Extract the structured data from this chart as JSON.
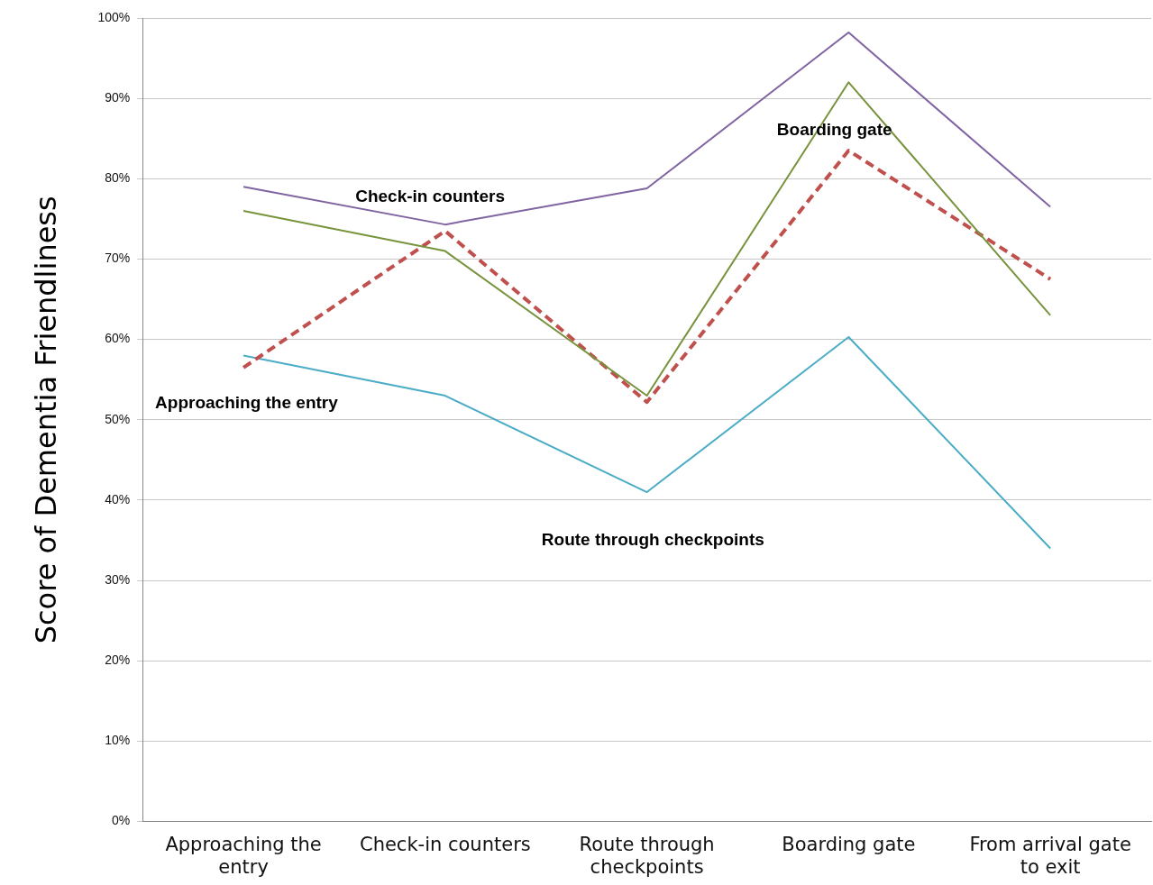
{
  "chart_data": {
    "type": "line",
    "ylabel": "Score of Dementia Friendliness",
    "categories": [
      "Approaching the entry",
      "Check-in counters",
      "Route through checkpoints",
      "Boarding gate",
      "From arrival gate to exit"
    ],
    "series": [
      {
        "color": "#8064a2",
        "values": [
          79,
          74.3,
          78.8,
          98.2,
          76.5
        ]
      },
      {
        "color": "#77933c",
        "values": [
          76,
          71,
          53,
          92,
          63
        ]
      },
      {
        "color": "#c0504d",
        "values": [
          56.5,
          73.5,
          52.2,
          83.5,
          67.5
        ],
        "line_style": "dashed"
      },
      {
        "color": "#4bacc6",
        "values": [
          58,
          53,
          41,
          60.3,
          34
        ]
      }
    ],
    "ylim": [
      0,
      100
    ],
    "yticks": [
      {
        "value": 0,
        "label": "0%"
      },
      {
        "value": 10,
        "label": "10%"
      },
      {
        "value": 20,
        "label": "20%"
      },
      {
        "value": 30,
        "label": "30%"
      },
      {
        "value": 40,
        "label": "40%"
      },
      {
        "value": 50,
        "label": "50%"
      },
      {
        "value": 60,
        "label": "60%"
      },
      {
        "value": 70,
        "label": "70%"
      },
      {
        "value": 80,
        "label": "80%"
      },
      {
        "value": 90,
        "label": "90%"
      },
      {
        "value": 100,
        "label": "100%"
      }
    ],
    "grid": "y",
    "legend": false,
    "marker": "none",
    "line_style": "solid",
    "annotations": [
      "Check-in counters",
      "Boarding gate",
      "Approaching the entry",
      "Route through checkpoints"
    ]
  }
}
